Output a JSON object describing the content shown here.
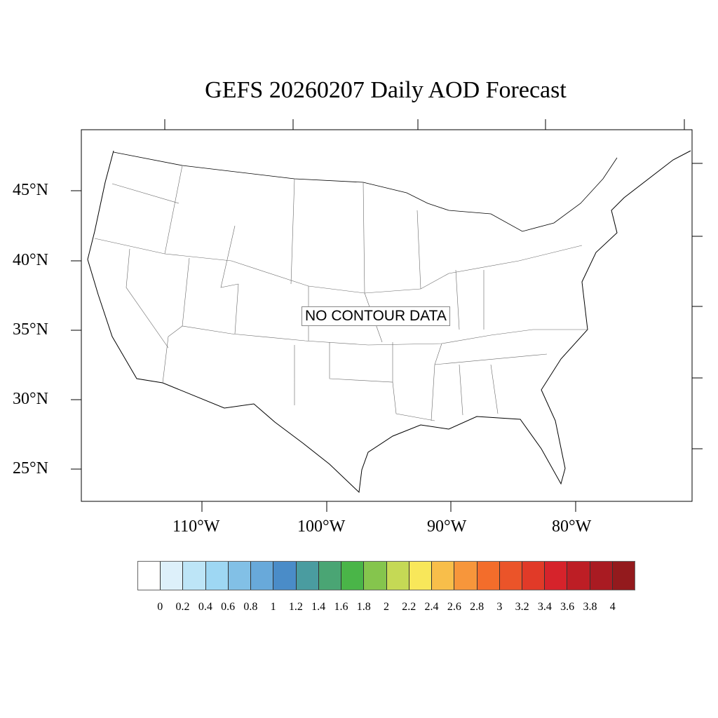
{
  "title": "GEFS 20260207 Daily AOD Forecast",
  "message": "NO CONTOUR DATA",
  "lat_labels": [
    "45°N",
    "40°N",
    "35°N",
    "30°N",
    "25°N"
  ],
  "lon_labels": [
    "110°W",
    "100°W",
    "90°W",
    "80°W"
  ],
  "colorbar": {
    "labels": [
      "0",
      "0.2",
      "0.4",
      "0.6",
      "0.8",
      "1",
      "1.2",
      "1.4",
      "1.6",
      "1.8",
      "2",
      "2.2",
      "2.4",
      "2.6",
      "2.8",
      "3",
      "3.2",
      "3.4",
      "3.6",
      "3.8",
      "4"
    ],
    "colors": [
      "#ffffff",
      "#ddf0fa",
      "#bde5f7",
      "#9ed7f3",
      "#82c0e6",
      "#68a9da",
      "#4a8cc8",
      "#4a9ca0",
      "#4aa574",
      "#4ab548",
      "#85c54d",
      "#c5d955",
      "#f8e75a",
      "#f8be4a",
      "#f7963b",
      "#f36d2b",
      "#eb5429",
      "#e13a28",
      "#d6232b",
      "#bd1e25",
      "#a91b22",
      "#931a1d"
    ]
  }
}
